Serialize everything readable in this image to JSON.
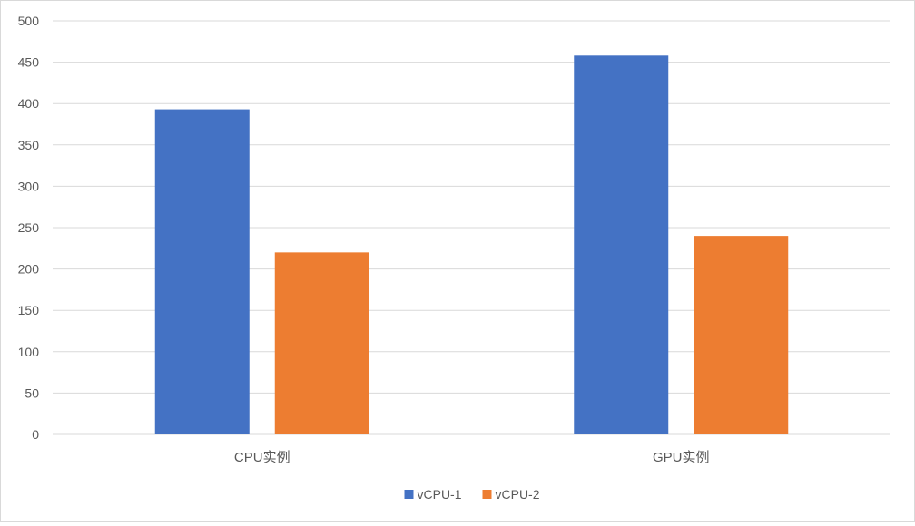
{
  "chart_data": {
    "type": "bar",
    "categories": [
      "CPU实例",
      "GPU实例"
    ],
    "series": [
      {
        "name": "vCPU-1",
        "values": [
          393,
          458
        ],
        "color": "#4472c4"
      },
      {
        "name": "vCPU-2",
        "values": [
          220,
          240
        ],
        "color": "#ed7d31"
      }
    ],
    "ylim": [
      0,
      500
    ],
    "yticks": [
      0,
      50,
      100,
      150,
      200,
      250,
      300,
      350,
      400,
      450,
      500
    ],
    "grid": true,
    "legend_position": "bottom"
  }
}
